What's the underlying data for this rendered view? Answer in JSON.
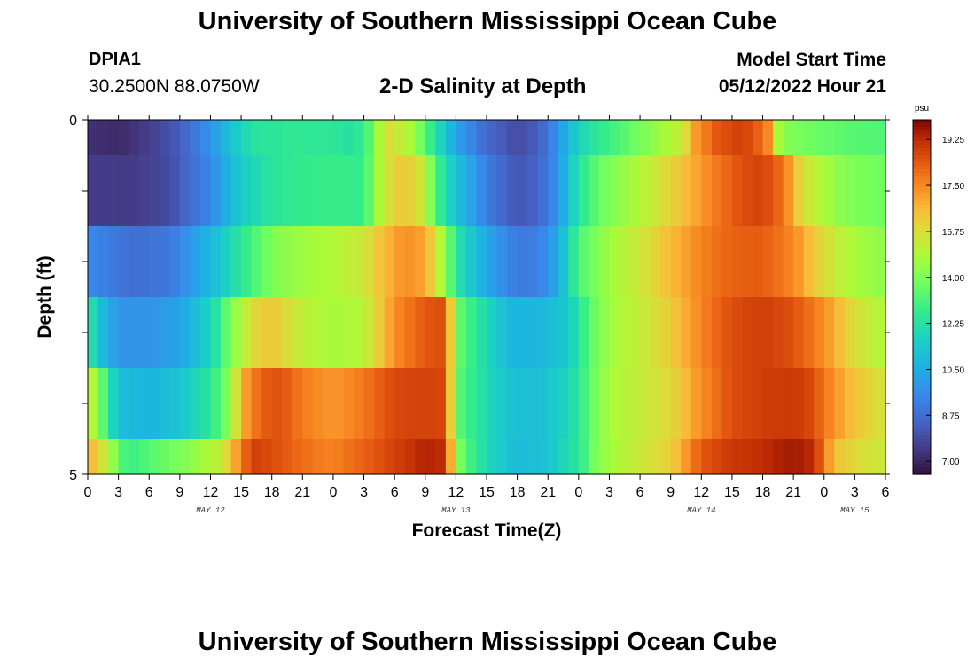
{
  "header": {
    "title": "University of Southern Mississippi Ocean Cube",
    "station_id": "DPIA1",
    "coordinates": "30.2500N  88.0750W",
    "subtitle": "2-D Salinity at Depth",
    "model_label": "Model Start Time",
    "model_time": "05/12/2022 Hour 21"
  },
  "footer": {
    "title": "University of Southern Mississippi Ocean Cube"
  },
  "chart_data": {
    "type": "heatmap",
    "title": "2-D Salinity at Depth",
    "xlabel": "Forecast Time(Z)",
    "ylabel": "Depth (ft)",
    "x_tick_labels": [
      "0",
      "3",
      "6",
      "9",
      "12",
      "15",
      "18",
      "21",
      "0",
      "3",
      "6",
      "9",
      "12",
      "15",
      "18",
      "21",
      "0",
      "3",
      "6",
      "9",
      "12",
      "15",
      "18",
      "21",
      "0",
      "3",
      "6"
    ],
    "x_hours": [
      0,
      3,
      6,
      9,
      12,
      15,
      18,
      21,
      24,
      27,
      30,
      33,
      36,
      39,
      42,
      45,
      48,
      51,
      54,
      57,
      60,
      63,
      66,
      69,
      72,
      75,
      78
    ],
    "x_range": [
      0,
      78
    ],
    "day_labels": [
      {
        "hour": 12,
        "label": "MAY 12"
      },
      {
        "hour": 36,
        "label": "MAY 13"
      },
      {
        "hour": 60,
        "label": "MAY 14"
      },
      {
        "hour": 75,
        "label": "MAY 15"
      }
    ],
    "y_tick_labels": [
      "0",
      "5"
    ],
    "y_range": [
      0,
      5
    ],
    "depth_levels": [
      "0-0.5 ft",
      "0.5-1.5 ft",
      "1.5-2.5 ft",
      "2.5-3.5 ft",
      "3.5-4.5 ft",
      "4.5-5 ft"
    ],
    "colorbar": {
      "unit": "psu",
      "min": 6.5,
      "max": 20.0,
      "ticks": [
        "19.25",
        "17.50",
        "15.75",
        "14.00",
        "12.25",
        "10.50",
        "8.75",
        "7.00"
      ],
      "tick_values": [
        19.25,
        17.5,
        15.75,
        14.0,
        12.25,
        10.5,
        8.75,
        7.0
      ]
    },
    "series": [
      {
        "name": "0 ft",
        "hours": [
          0,
          3,
          6,
          9,
          12,
          14,
          16,
          20,
          24,
          26,
          27.5,
          28.5,
          29.5,
          31.5,
          33.5,
          34,
          35,
          36,
          39,
          42,
          44,
          46,
          48,
          50,
          52,
          55,
          58,
          59.5,
          61.5,
          63.5,
          65,
          66.5,
          67,
          68,
          70,
          74,
          78
        ],
        "values": [
          7.3,
          7.1,
          7.6,
          8.3,
          9.8,
          11.2,
          12.3,
          12.6,
          12.5,
          12.2,
          13.3,
          14.8,
          15.8,
          14.8,
          12.8,
          12.3,
          11.3,
          10.2,
          8.6,
          7.9,
          8.3,
          9.8,
          11.8,
          12.6,
          13.2,
          14.2,
          15.3,
          17.2,
          18.4,
          18.8,
          18.6,
          17.5,
          15.3,
          14.2,
          13.8,
          13.4,
          13.2
        ]
      },
      {
        "name": "1 ft",
        "hours": [
          0,
          4,
          8,
          12,
          15,
          18,
          21,
          24,
          27,
          29,
          31,
          33,
          34,
          36,
          39,
          42,
          44,
          46,
          48,
          50,
          52,
          55,
          58,
          61,
          64,
          66,
          68,
          70,
          74,
          78
        ],
        "values": [
          7.6,
          7.5,
          7.9,
          9.5,
          11.5,
          12.4,
          12.7,
          12.8,
          12.7,
          15.5,
          16.4,
          15.2,
          13.1,
          11.2,
          9.2,
          8.1,
          8.5,
          9.8,
          12.4,
          13.6,
          14.3,
          15.3,
          16.4,
          17.6,
          18.6,
          18.8,
          17.9,
          15.6,
          14.1,
          13.7
        ]
      },
      {
        "name": "2 ft",
        "hours": [
          0,
          4,
          8,
          12,
          15,
          18,
          21,
          24,
          27,
          29,
          31,
          33,
          35,
          36,
          39,
          42,
          44,
          46,
          48,
          51,
          54,
          57,
          60,
          63,
          66,
          69,
          71,
          74,
          78
        ],
        "values": [
          9.6,
          8.8,
          9.0,
          10.8,
          12.5,
          14.0,
          14.6,
          14.9,
          15.5,
          16.6,
          17.4,
          17.0,
          14.3,
          12.4,
          10.3,
          9.1,
          9.2,
          10.4,
          13.2,
          14.6,
          15.5,
          16.6,
          17.6,
          18.2,
          18.3,
          17.5,
          16.3,
          15.0,
          14.2
        ]
      },
      {
        "name": "3 ft",
        "hours": [
          0,
          1,
          3,
          6,
          9,
          12,
          14,
          16,
          18,
          21,
          24,
          27,
          30,
          33,
          35,
          36,
          38,
          41,
          44,
          47,
          49,
          51,
          54,
          57,
          60,
          63,
          66,
          69,
          72,
          75,
          78
        ],
        "values": [
          12.8,
          11.2,
          9.8,
          9.8,
          10.2,
          11.8,
          14.0,
          15.8,
          16.4,
          15.2,
          14.7,
          15.0,
          17.4,
          18.4,
          18.6,
          13.8,
          12.5,
          10.8,
          10.7,
          11.4,
          13.3,
          14.6,
          15.3,
          16.2,
          17.6,
          18.6,
          18.9,
          18.5,
          17.4,
          15.7,
          14.8
        ]
      },
      {
        "name": "4 ft",
        "hours": [
          0,
          1,
          2,
          3,
          6,
          9,
          12,
          14,
          15,
          17,
          19,
          21,
          24,
          27,
          30,
          33,
          35,
          36,
          38,
          41,
          44,
          47,
          49,
          51,
          54,
          57,
          60,
          63,
          66,
          69,
          71,
          72,
          75,
          78
        ],
        "values": [
          15.6,
          14.2,
          12.6,
          11.0,
          10.7,
          11.2,
          12.5,
          14.3,
          16.8,
          18.3,
          18.5,
          17.7,
          17.2,
          17.8,
          18.7,
          18.8,
          18.7,
          13.6,
          12.4,
          11.2,
          11.0,
          11.8,
          13.4,
          14.8,
          15.3,
          15.9,
          17.4,
          18.6,
          18.9,
          19.0,
          18.6,
          17.8,
          16.4,
          15.6
        ]
      },
      {
        "name": "5 ft",
        "hours": [
          0,
          1,
          2,
          3,
          4,
          7,
          10,
          13,
          15,
          16,
          18,
          20,
          22,
          24,
          27,
          30,
          33,
          35,
          36,
          37,
          39,
          42,
          45,
          48,
          50,
          53,
          57,
          60,
          63,
          66,
          69,
          71,
          72,
          73,
          76,
          78
        ],
        "values": [
          17.0,
          16.0,
          15.2,
          13.4,
          12.8,
          13.5,
          14.2,
          15.3,
          17.6,
          18.9,
          18.6,
          18.2,
          17.8,
          17.6,
          18.2,
          18.8,
          19.4,
          19.2,
          14.5,
          13.3,
          11.9,
          10.9,
          11.2,
          12.5,
          14.3,
          15.2,
          16.1,
          18.4,
          19.0,
          19.2,
          19.6,
          19.2,
          17.9,
          16.4,
          15.7,
          15.4
        ]
      }
    ],
    "grid": false,
    "legend": "colorbar-right"
  }
}
